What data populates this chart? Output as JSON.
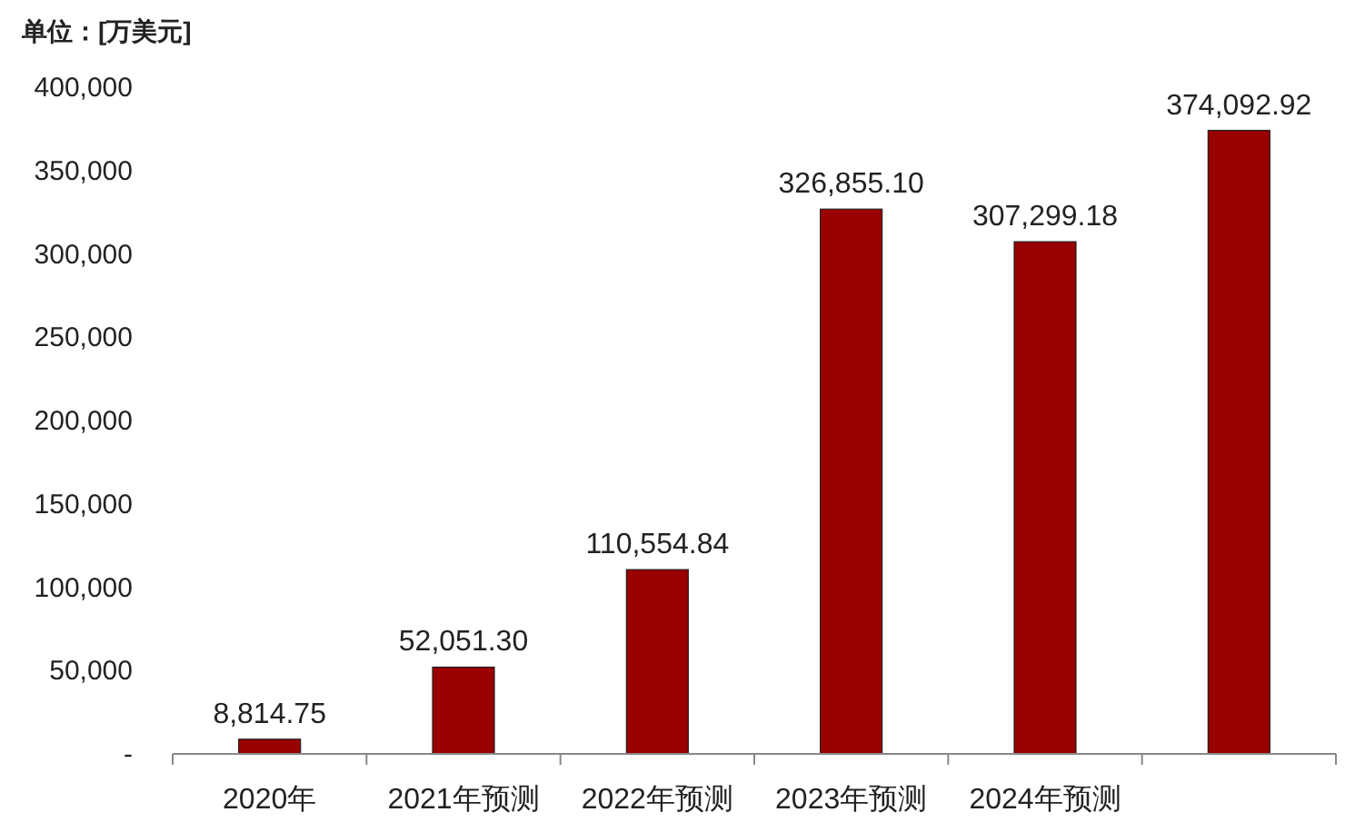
{
  "chart_data": {
    "type": "bar",
    "ylabel": "单位：[万美元]",
    "categories": [
      "2020年",
      "2021年预测",
      "2022年预测",
      "2023年预测",
      "2024年预测",
      null
    ],
    "values": [
      8814.75,
      52051.3,
      110554.84,
      326855.1,
      307299.18,
      374092.92
    ],
    "value_labels": [
      "8,814.75",
      "52,051.30",
      "110,554.84",
      "326,855.10",
      "307,299.18",
      "374,092.92"
    ],
    "color": "#990000",
    "ylim": [
      0,
      400000
    ],
    "yticks": [
      {
        "value": 0,
        "label": "-"
      },
      {
        "value": 50000,
        "label": "50,000"
      },
      {
        "value": 100000,
        "label": "100,000"
      },
      {
        "value": 150000,
        "label": "150,000"
      },
      {
        "value": 200000,
        "label": "200,000"
      },
      {
        "value": 250000,
        "label": "250,000"
      },
      {
        "value": 300000,
        "label": "300,000"
      },
      {
        "value": 350000,
        "label": "350,000"
      },
      {
        "value": 400000,
        "label": "400,000"
      }
    ],
    "grid": false
  }
}
